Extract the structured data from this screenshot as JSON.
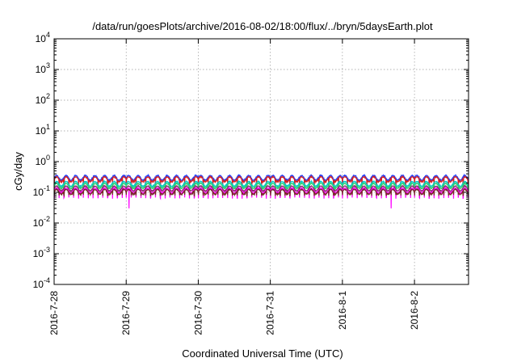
{
  "chart_data": {
    "type": "line",
    "title": "/data/run/goesPlots/archive/2016-08-02/18:00/flux/../bryn/5daysEarth.plot",
    "xlabel": "Coordinated Universal Time (UTC)",
    "ylabel": "cGy/day",
    "y_scale": "log",
    "ylim": [
      0.0001,
      10000
    ],
    "y_ticks": [
      {
        "base": "10",
        "exp": "-4"
      },
      {
        "base": "10",
        "exp": "-3"
      },
      {
        "base": "10",
        "exp": "-2"
      },
      {
        "base": "10",
        "exp": "-1"
      },
      {
        "base": "10",
        "exp": "0"
      },
      {
        "base": "10",
        "exp": "1"
      },
      {
        "base": "10",
        "exp": "2"
      },
      {
        "base": "10",
        "exp": "3"
      },
      {
        "base": "10",
        "exp": "4"
      }
    ],
    "x_ticks": [
      "2016-7-28",
      "2016-7-29",
      "2016-7-30",
      "2016-7-31",
      "2016-8-1",
      "2016-8-2"
    ],
    "xlim": [
      "2016-07-28 00:00",
      "2016-08-02 18:00"
    ],
    "grid": true,
    "series": [
      {
        "color": "#1f3fff",
        "base": 0.3,
        "dip": 0.17
      },
      {
        "color": "#d62020",
        "base": 0.27,
        "dip": 0.16
      },
      {
        "color": "#00c8c8",
        "base": 0.19,
        "dip": 0.12
      },
      {
        "color": "#2ecc71",
        "base": 0.165,
        "dip": 0.105
      },
      {
        "color": "#8b2d6f",
        "base": 0.135,
        "dip": 0.09
      },
      {
        "color": "#ff00ff",
        "base": 0.115,
        "dip": 0.065
      },
      {
        "color": "#7a2a2a",
        "base": 0.105,
        "dip": 0.08
      }
    ]
  }
}
